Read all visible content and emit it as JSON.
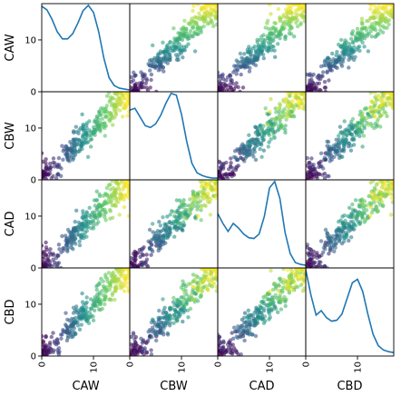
{
  "chart_data": {
    "type": "scatter",
    "variables": [
      "CAW",
      "CBW",
      "CAD",
      "CBD"
    ],
    "axis_range": [
      0,
      17
    ],
    "tick_values": [
      0,
      10
    ],
    "tick_labels": [
      "0",
      "10"
    ],
    "colormap": [
      "#440154",
      "#3b528b",
      "#21918c",
      "#5ec962",
      "#fde725"
    ],
    "point_alpha": 0.6,
    "diagonal_type": "kde",
    "kde_color": "#1f77b4",
    "kde": {
      "CAW": {
        "x": [
          -1,
          0,
          1,
          2,
          3,
          4,
          5,
          6,
          7,
          8,
          9,
          10,
          11,
          12,
          13,
          14,
          15,
          16,
          17,
          18
        ],
        "y": [
          0.9,
          0.97,
          0.93,
          0.82,
          0.68,
          0.6,
          0.6,
          0.66,
          0.78,
          0.92,
          0.98,
          0.9,
          0.68,
          0.38,
          0.16,
          0.07,
          0.04,
          0.03,
          0.02,
          0.02
        ]
      },
      "CBW": {
        "x": [
          -1,
          0,
          1,
          2,
          3,
          4,
          5,
          6,
          7,
          8,
          9,
          10,
          11,
          12,
          13,
          14,
          15,
          16,
          17,
          18
        ],
        "y": [
          0.68,
          0.8,
          0.82,
          0.72,
          0.62,
          0.6,
          0.64,
          0.74,
          0.88,
          0.99,
          0.97,
          0.75,
          0.44,
          0.19,
          0.08,
          0.05,
          0.03,
          0.02,
          0.02,
          0.02
        ]
      },
      "CAD": {
        "x": [
          -1,
          0,
          1,
          2,
          3,
          4,
          5,
          6,
          7,
          8,
          9,
          10,
          11,
          12,
          13,
          14,
          15,
          16,
          17,
          18
        ],
        "y": [
          0.5,
          0.61,
          0.5,
          0.41,
          0.5,
          0.45,
          0.38,
          0.34,
          0.33,
          0.38,
          0.58,
          0.9,
          0.97,
          0.78,
          0.4,
          0.16,
          0.06,
          0.04,
          0.03,
          0.02
        ]
      },
      "CBD": {
        "x": [
          -1,
          0,
          1,
          2,
          3,
          4,
          5,
          6,
          7,
          8,
          9,
          10,
          11,
          12,
          13,
          14,
          15,
          16,
          17,
          18
        ],
        "y": [
          0.85,
          0.99,
          0.7,
          0.47,
          0.52,
          0.44,
          0.4,
          0.41,
          0.48,
          0.66,
          0.84,
          0.88,
          0.74,
          0.48,
          0.25,
          0.12,
          0.07,
          0.05,
          0.04,
          0.03
        ]
      }
    }
  }
}
